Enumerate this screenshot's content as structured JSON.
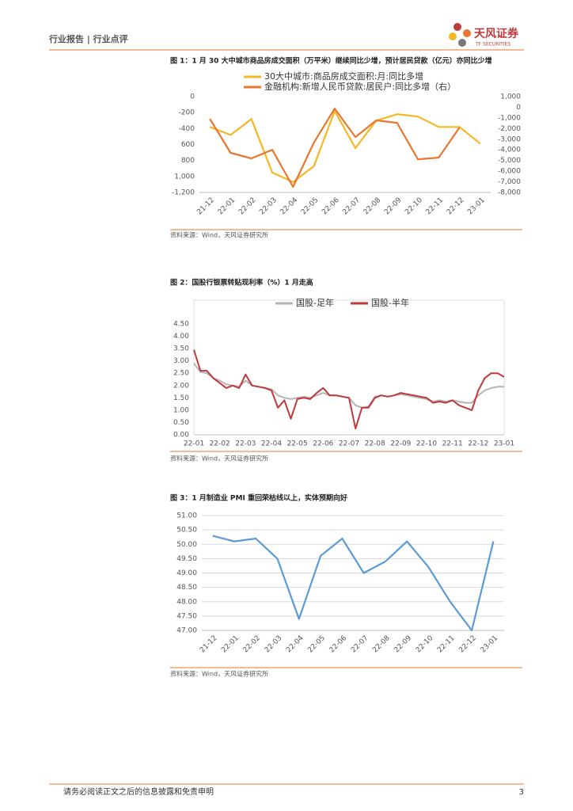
{
  "header": {
    "section": "行业报告 | 行业点评",
    "logo": "天风证券",
    "logo_en": "TF SECURITIES"
  },
  "chart_data": [
    {
      "type": "line",
      "title": "图 1：1 月 30 大中城市商品房成交面积（万平米）继续同比少增，预计居民贷款（亿元）亦同比少增",
      "source": "资料来源：Wind，天风证券研究所",
      "categories": [
        "21-12",
        "22-01",
        "22-02",
        "22-03",
        "22-04",
        "22-05",
        "22-06",
        "22-07",
        "22-08",
        "22-09",
        "22-10",
        "22-11",
        "22-12",
        "23-01"
      ],
      "series": [
        {
          "name": "30大中城市:商品房成交面积:月:同比多增",
          "color": "#f5b724",
          "values": [
            -380,
            -480,
            -280,
            -950,
            -1070,
            -870,
            -180,
            -645,
            -300,
            -220,
            -250,
            -380,
            -380,
            -590
          ]
        },
        {
          "name": "金融机构:新增人民币贷款:居民户:同比多增（右）",
          "color": "#e9772f",
          "axis": "y2",
          "values": [
            -1080,
            -4280,
            -4800,
            -3990,
            -7480,
            -3320,
            -120,
            -2800,
            -1230,
            -1460,
            -4880,
            -4730,
            -1900,
            null
          ]
        }
      ],
      "ylim": [
        -1200,
        0
      ],
      "yticks": [
        0,
        -200,
        -400,
        {
          "value": -600,
          "label": "600"
        },
        {
          "value": -800,
          "label": "800"
        },
        {
          "value": -1000,
          "label": "1,000"
        },
        {
          "value": -1200,
          "label": "-1,200"
        }
      ],
      "y2lim": [
        -8000,
        1000
      ],
      "y2ticks": [
        {
          "value": 1000,
          "label": "1,000"
        },
        0,
        {
          "value": -1000,
          "label": "-1,000"
        },
        {
          "value": -2000,
          "label": "-2,000"
        },
        {
          "value": -3000,
          "label": "-3,000"
        },
        {
          "value": -4000,
          "label": "-4,000"
        },
        {
          "value": -5000,
          "label": "-5,000"
        },
        {
          "value": -6000,
          "label": "-6,000"
        },
        {
          "value": -7000,
          "label": "-7,000"
        },
        {
          "value": -8000,
          "label": "-8,000"
        }
      ],
      "grid": false,
      "legend": "top"
    },
    {
      "type": "line",
      "title": "图 2：国股行银票转贴现利率（%）1 月走高",
      "source": "资料来源：Wind，天风证券研究所",
      "categories": [
        "22-01",
        null,
        null,
        null,
        "22-02",
        null,
        null,
        null,
        "22-03",
        null,
        null,
        null,
        "22-04",
        null,
        null,
        null,
        "22-05",
        null,
        null,
        null,
        "22-06",
        null,
        null,
        null,
        "22-07",
        null,
        null,
        null,
        "22-08",
        null,
        null,
        null,
        "22-09",
        null,
        null,
        null,
        "22-10",
        null,
        null,
        null,
        "22-11",
        null,
        null,
        null,
        "22-12",
        null,
        null,
        null,
        "23-01"
      ],
      "series": [
        {
          "name": "国股-足年",
          "color": "#b4b4b4",
          "values": [
            2.9,
            2.55,
            2.5,
            2.3,
            2.2,
            2.05,
            2.0,
            1.95,
            2.2,
            2.0,
            1.95,
            1.9,
            1.85,
            1.6,
            1.5,
            1.45,
            1.5,
            1.55,
            1.5,
            1.6,
            1.7,
            1.6,
            1.6,
            1.55,
            1.5,
            1.2,
            1.1,
            1.15,
            1.55,
            1.6,
            1.55,
            1.6,
            1.65,
            1.6,
            1.55,
            1.5,
            1.45,
            1.35,
            1.4,
            1.35,
            1.4,
            1.35,
            1.3,
            1.3,
            1.6,
            1.8,
            1.9,
            1.95,
            1.95
          ]
        },
        {
          "name": "国股-半年",
          "color": "#c0393b",
          "values": [
            3.45,
            2.6,
            2.6,
            2.3,
            2.1,
            1.9,
            2.0,
            1.9,
            2.45,
            2.0,
            1.95,
            1.9,
            1.8,
            1.1,
            1.4,
            0.65,
            1.45,
            1.5,
            1.45,
            1.7,
            1.9,
            1.6,
            1.6,
            1.55,
            1.5,
            0.25,
            1.1,
            1.1,
            1.5,
            1.6,
            1.55,
            1.6,
            1.7,
            1.65,
            1.6,
            1.55,
            1.5,
            1.3,
            1.35,
            1.3,
            1.4,
            1.2,
            1.1,
            1.0,
            1.8,
            2.3,
            2.5,
            2.5,
            2.35
          ]
        }
      ],
      "ylim": [
        0,
        4.5
      ],
      "yticks": [
        {
          "value": 0,
          "label": "0.00"
        },
        {
          "value": 0.5,
          "label": "0.50"
        },
        {
          "value": 1,
          "label": "1.00"
        },
        {
          "value": 1.5,
          "label": "1.50"
        },
        {
          "value": 2,
          "label": "2.00"
        },
        {
          "value": 2.5,
          "label": "2.50"
        },
        {
          "value": 3,
          "label": "3.00"
        },
        {
          "value": 3.5,
          "label": "3.50"
        },
        {
          "value": 4,
          "label": "4.00"
        },
        {
          "value": 4.5,
          "label": "4.50"
        }
      ],
      "grid": false,
      "legend": "top"
    },
    {
      "type": "line",
      "title": "图 3：1 月制造业 PMI 重回荣枯线以上，实体预期向好",
      "source": "资料来源：Wind，天风证券研究所",
      "categories": [
        "21-12",
        "22-01",
        "22-02",
        "22-03",
        "22-04",
        "22-05",
        "22-06",
        "22-07",
        "22-08",
        "22-09",
        "22-10",
        "22-11",
        "22-12",
        "23-01"
      ],
      "series": [
        {
          "color": "#5b9bd5",
          "values": [
            50.3,
            50.1,
            50.2,
            49.5,
            47.4,
            49.6,
            50.2,
            49.0,
            49.4,
            50.1,
            49.2,
            48.0,
            47.0,
            50.1
          ]
        }
      ],
      "ylim": [
        47,
        51
      ],
      "yticks": [
        {
          "value": 47,
          "label": "47.00"
        },
        {
          "value": 47.5,
          "label": "47.50"
        },
        {
          "value": 48,
          "label": "48.00"
        },
        {
          "value": 48.5,
          "label": "48.50"
        },
        {
          "value": 49,
          "label": "49.00"
        },
        {
          "value": 49.5,
          "label": "49.50"
        },
        {
          "value": 50,
          "label": "50.00"
        },
        {
          "value": 50.5,
          "label": "50.50"
        },
        {
          "value": 51,
          "label": "51.00"
        }
      ],
      "grid": true
    }
  ],
  "footer": {
    "disclaimer": "请务必阅读正文之后的信息披露和免责申明",
    "page": "3"
  }
}
